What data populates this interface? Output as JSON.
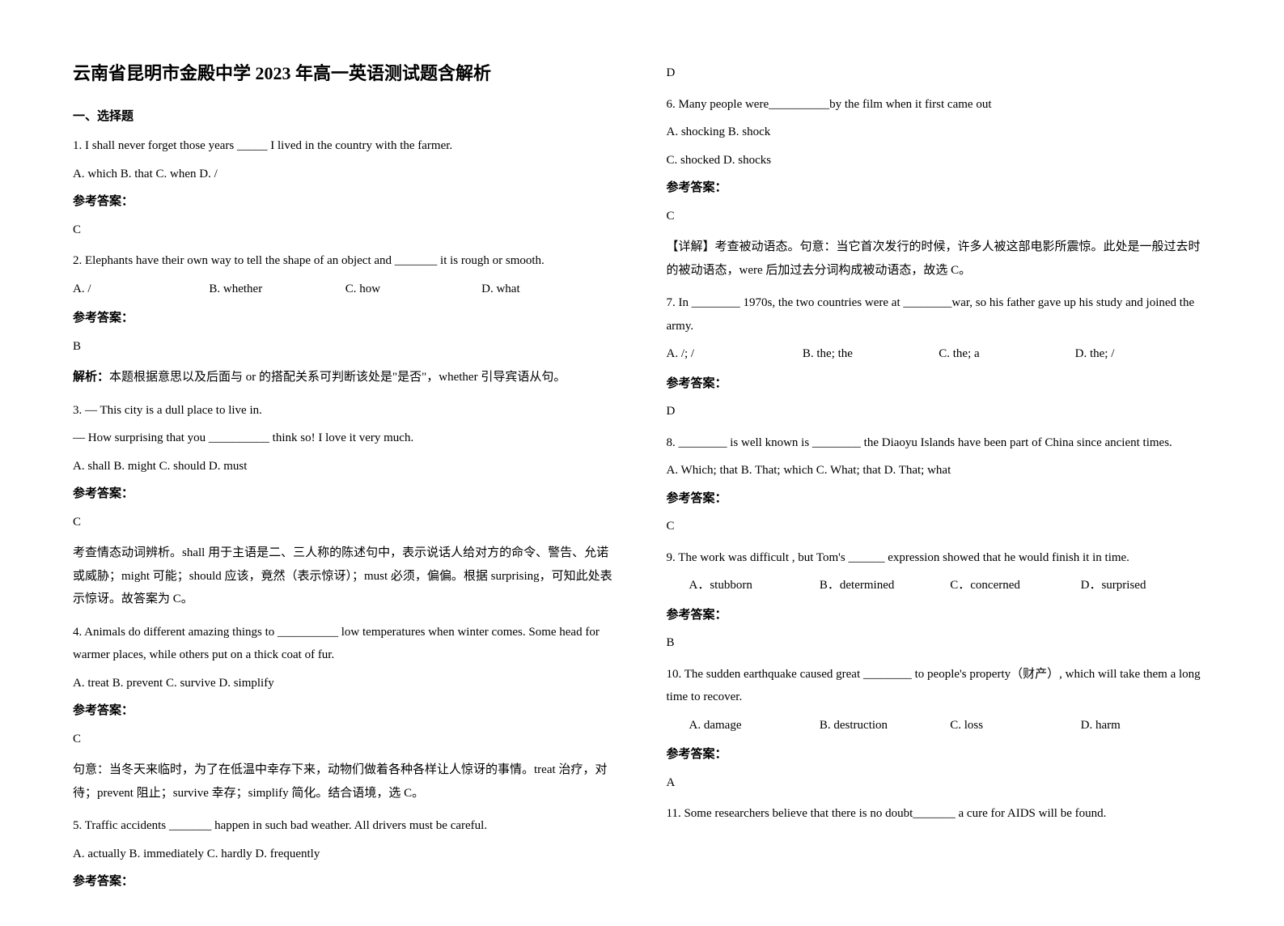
{
  "title": "云南省昆明市金殿中学 2023 年高一英语测试题含解析",
  "section1": "一、选择题",
  "q1": {
    "text": "1. I shall never forget those years _____ I lived in the country with the farmer.",
    "opts": "  A. which    B. that    C. when    D. /",
    "ansLabel": "参考答案：",
    "ans": "C"
  },
  "q2": {
    "text": "2. Elephants have their own way to tell the shape of an object and _______ it is rough or smooth.",
    "a": "A. /",
    "b": "B. whether",
    "c": "C. how",
    "d": "D. what",
    "ansLabel": "参考答案：",
    "ans": "B",
    "explainLabel": "解析：",
    "explain": "本题根据意思以及后面与 or 的搭配关系可判断该处是\"是否\"，whether 引导宾语从句。"
  },
  "q3": {
    "l1": "3. — This city is a dull place to live in.",
    "l2": "— How surprising that you __________ think so! I love it very much.",
    "opts": "A. shall      B. might    C. should     D. must",
    "ansLabel": "参考答案：",
    "ans": "C",
    "explain": "考查情态动词辨析。shall 用于主语是二、三人称的陈述句中，表示说话人给对方的命令、警告、允诺或威胁；might 可能；should 应该，竟然（表示惊讶）；must 必须，偏偏。根据 surprising，可知此处表示惊讶。故答案为 C。"
  },
  "q4": {
    "text": "4. Animals do different amazing things to __________ low temperatures when winter comes. Some head for warmer places, while others put on a thick coat of fur.",
    "opts": "A. treat       B. prevent      C. survive      D. simplify",
    "ansLabel": "参考答案：",
    "ans": "C",
    "explain": "句意：当冬天来临时，为了在低温中幸存下来，动物们做着各种各样让人惊讶的事情。treat 治疗，对待；prevent 阻止；survive 幸存；simplify 简化。结合语境，选 C。"
  },
  "q5": {
    "text": "5. Traffic accidents _______ happen in such bad weather. All drivers must be careful.",
    "opts": "  A. actually       B. immediately   C. hardly    D. frequently",
    "ansLabel": "参考答案："
  },
  "q5ans": "D",
  "q6": {
    "text": "6. Many people were__________by the film when it first came out",
    "o1": "A. shocking    B. shock",
    "o2": "C. shocked    D. shocks",
    "ansLabel": "参考答案：",
    "ans": "C",
    "explain": "【详解】考查被动语态。句意：当它首次发行的时候，许多人被这部电影所震惊。此处是一般过去时的被动语态，were 后加过去分词构成被动语态，故选 C。"
  },
  "q7": {
    "text": "7. In ________ 1970s, the two countries were at ________war, so his father gave up his study and joined the army.",
    "a": "A. /; /",
    "b": "B. the; the",
    "c": "C. the; a",
    "d": "D. the; /",
    "ansLabel": "参考答案：",
    "ans": "D"
  },
  "q8": {
    "text": "8. ________ is well known is ________ the Diaoyu Islands have been part of China since ancient times.",
    "opts": "A. Which; that   B. That; which  C. What; that  D. That; what",
    "ansLabel": "参考答案：",
    "ans": "C"
  },
  "q9": {
    "text": "9. The work was difficult , but Tom's ______ expression showed that he would finish it  in time.",
    "a": "A．stubborn",
    "b": "B．determined",
    "c": "C．concerned",
    "d": "D．surprised",
    "ansLabel": "参考答案：",
    "ans": "B"
  },
  "q10": {
    "text": "10. The sudden earthquake caused great ________ to people's property（财产）, which will take them a long time to recover.",
    "a": "A. damage",
    "b": "B. destruction",
    "c": "C. loss",
    "d": "D. harm",
    "ansLabel": "参考答案：",
    "ans": "A"
  },
  "q11": {
    "text": "11. Some researchers believe that there is no doubt_______ a cure for AIDS will be found."
  }
}
